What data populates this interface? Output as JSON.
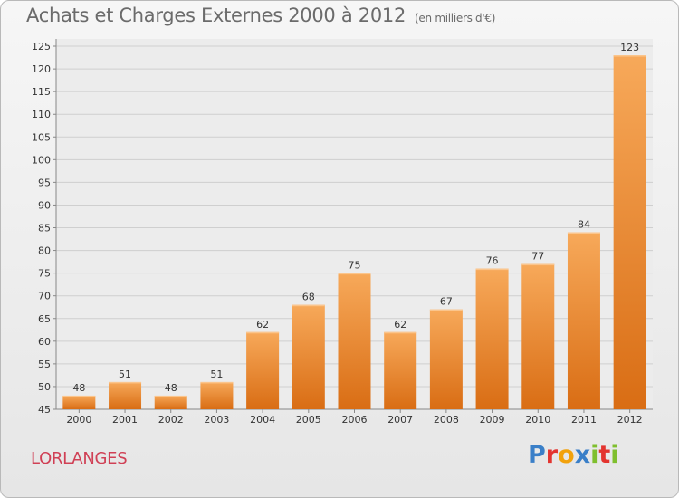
{
  "chart_data": {
    "type": "bar",
    "title": "Achats et Charges Externes 2000 à 2012",
    "subtitle": "(en milliers d'€)",
    "categories": [
      "2000",
      "2001",
      "2002",
      "2003",
      "2004",
      "2005",
      "2006",
      "2007",
      "2008",
      "2009",
      "2010",
      "2011",
      "2012"
    ],
    "values": [
      48,
      51,
      48,
      51,
      62,
      68,
      75,
      62,
      67,
      76,
      77,
      84,
      123
    ],
    "ylim": [
      45,
      125
    ],
    "yticks": [
      45,
      50,
      55,
      60,
      65,
      70,
      75,
      80,
      85,
      90,
      95,
      100,
      105,
      110,
      115,
      120,
      125
    ],
    "grid": true,
    "bar_color_top": "#f7a95a",
    "bar_color_bottom": "#d96d14"
  },
  "location": "LORLANGES",
  "logo": {
    "text": "Proxiti",
    "letters": [
      "P",
      "r",
      "o",
      "x",
      "i",
      "t",
      "i"
    ],
    "colors": [
      "#3a7fc8",
      "#e3342f",
      "#f2a20c",
      "#3a7fc8",
      "#7fbf2e",
      "#e3342f",
      "#7fbf2e"
    ]
  }
}
